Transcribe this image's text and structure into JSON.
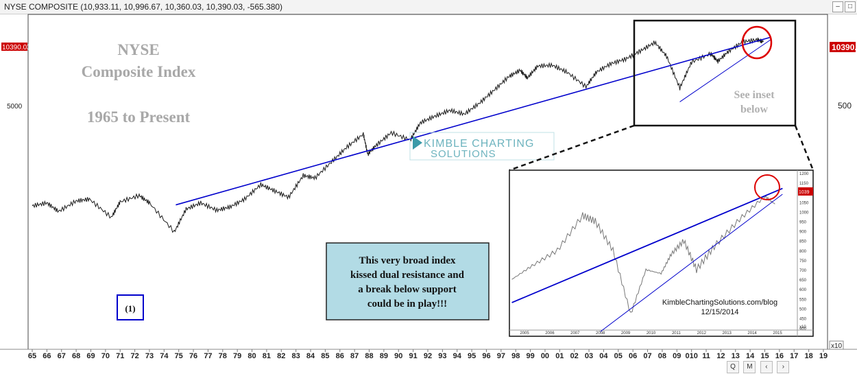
{
  "window": {
    "title": "NYSE COMPOSITE (10,933.11, 10,996.67, 10,360.03, 10,390.03, -565.380)"
  },
  "chart_data": {
    "type": "line",
    "y_scale": "log",
    "price_label_left": "10390.03",
    "price_label_right": "10390.",
    "y_tick_left": "5000",
    "y_tick_right": "500",
    "x_tick_labels": [
      "65",
      "66",
      "67",
      "68",
      "69",
      "70",
      "71",
      "72",
      "73",
      "74",
      "75",
      "76",
      "77",
      "78",
      "79",
      "80",
      "81",
      "82",
      "83",
      "84",
      "85",
      "86",
      "87",
      "88",
      "89",
      "90",
      "91",
      "92",
      "93",
      "94",
      "95",
      "96",
      "97",
      "98",
      "99",
      "00",
      "01",
      "02",
      "03",
      "04",
      "05",
      "06",
      "07",
      "08",
      "09",
      "010",
      "11",
      "12",
      "13",
      "14",
      "15",
      "16",
      "17",
      "18",
      "19"
    ],
    "x_scale_label": "x10",
    "series": [
      {
        "x": [
          1965,
          1966,
          1966.8,
          1968,
          1968.9,
          1970.4,
          1971,
          1972.3,
          1973,
          1974.7,
          1975.5,
          1976.5,
          1977.6,
          1978.5,
          1979.5,
          1980.6,
          1981.5,
          1982.5,
          1983.5,
          1984.3,
          1985.5,
          1986.5,
          1987.6,
          1987.9,
          1988.5,
          1989.5,
          1990.8,
          1991.5,
          1992.5,
          1993.5,
          1994.5,
          1995.5,
          1996.5,
          1997.5,
          1998.3,
          1998.8,
          1999.5,
          2000.5,
          2001.5,
          2002.8,
          2003.5,
          2004.5,
          2005.5,
          2006.5,
          2007.5,
          2008.3,
          2009.2,
          2010,
          2011.3,
          2011.8,
          2012.5,
          2013.5,
          2014.5,
          2014.9
        ],
        "y": [
          530,
          560,
          480,
          580,
          600,
          430,
          570,
          640,
          560,
          330,
          500,
          560,
          490,
          520,
          600,
          780,
          700,
          620,
          920,
          880,
          1200,
          1550,
          1950,
          1350,
          1600,
          2000,
          1750,
          2400,
          2700,
          3000,
          2800,
          3400,
          4300,
          5500,
          6200,
          5400,
          6700,
          6800,
          6000,
          4600,
          6000,
          7000,
          7600,
          8800,
          10300,
          8000,
          4500,
          7200,
          8400,
          7300,
          8700,
          10400,
          10800,
          10390
        ]
      }
    ],
    "resistance_line": {
      "x": [
        1974.8,
        2015.4
      ],
      "y": [
        540,
        11300
      ]
    },
    "support_line": {
      "x": [
        2009.2,
        2015.4
      ],
      "y": [
        3500,
        10800
      ]
    },
    "annotations": {
      "title_line1": "NYSE",
      "title_line2": "Composite Index",
      "title_line3": "1965 to Present",
      "marker_1": "(1)",
      "see_inset": "See inset\nbelow",
      "callout": "This very broad index\nkissed dual resistance and\na break below support\ncould be in play!!!",
      "watermark_line1": "KIMBLE CHARTING",
      "watermark_line2": "SOLUTIONS"
    },
    "inset": {
      "y_ticks": [
        "1200",
        "1150",
        "1100",
        "1050",
        "1000",
        "950",
        "900",
        "850",
        "800",
        "750",
        "700",
        "650",
        "600",
        "550",
        "500",
        "450",
        "400"
      ],
      "price_label": "1039",
      "y_scale_label": "x10",
      "x_ticks": [
        "2005",
        "2006",
        "2007",
        "2008",
        "2009",
        "2010",
        "2011",
        "2012",
        "2013",
        "2014",
        "2015"
      ],
      "credit_line1": "KimbleChartingSolutions.com/blog",
      "credit_line2": "12/15/2014",
      "series": {
        "x": [
          2004.5,
          2005.3,
          2006.3,
          2007.3,
          2007.8,
          2008.5,
          2009.2,
          2009.8,
          2010.4,
          2010.8,
          2011.3,
          2011.8,
          2012.5,
          2013.5,
          2014.5,
          2014.9
        ],
        "y": [
          650,
          720,
          800,
          980,
          950,
          800,
          470,
          700,
          680,
          780,
          850,
          700,
          820,
          960,
          1080,
          1039
        ]
      },
      "resistance_line": {
        "x": [
          2004.5,
          2015.2
        ],
        "y": [
          530,
          1120
        ]
      },
      "support_line": {
        "x": [
          2008.0,
          2015.2
        ],
        "y": [
          380,
          1090
        ]
      }
    }
  },
  "colors": {
    "series": "#1a1a1a",
    "trendlines": "#0000cc",
    "circle": "#dd0000",
    "price_box": "#cc0000",
    "callout_bg": "#b2dbe5",
    "watermark": "#3b9aa8"
  },
  "toolbar": {
    "buttons": [
      "Q",
      "M",
      "‹",
      "›"
    ]
  }
}
